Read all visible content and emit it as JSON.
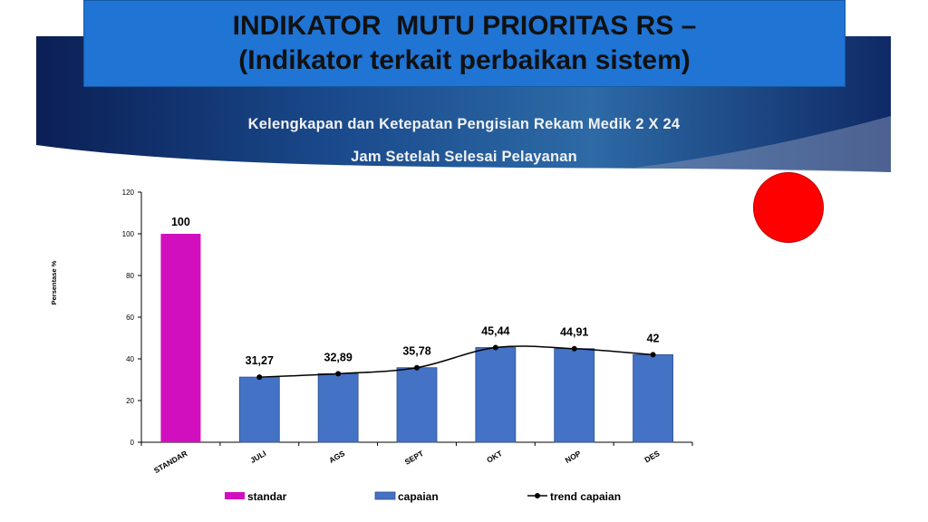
{
  "header": {
    "title_line1": "INDIKATOR  MUTU PRIORITAS RS –",
    "title_line2": "(Indikator terkait perbaikan sistem)"
  },
  "banner": {
    "subtitle_line1": "Kelengkapan dan Ketepatan Pengisian Rekam Medik 2 X 24",
    "subtitle_line2": "Jam Setelah Selesai Pelayanan"
  },
  "colors": {
    "title_bg": "#1f74d4",
    "banner_dark": "#0f2a66",
    "standar": "#d20fbe",
    "capaian": "#4472c4",
    "trend": "#000000",
    "status_dot": "#ff0000"
  },
  "status_indicator": {
    "icon": "red-circle",
    "color": "#ff0000"
  },
  "chart_data": {
    "type": "bar",
    "title": "",
    "xlabel": "",
    "ylabel": "Persentase %",
    "ylim": [
      0,
      120
    ],
    "yticks": [
      0,
      20,
      40,
      60,
      80,
      100,
      120
    ],
    "grid": false,
    "legend_position": "bottom",
    "categories": [
      "STANDAR",
      "JULI",
      "AGS",
      "SEPT",
      "OKT",
      "NOP",
      "DES"
    ],
    "series": [
      {
        "name": "standar",
        "kind": "bar",
        "color": "#d20fbe",
        "values": [
          100,
          null,
          null,
          null,
          null,
          null,
          null
        ],
        "labels": [
          "100",
          null,
          null,
          null,
          null,
          null,
          null
        ]
      },
      {
        "name": "capaian",
        "kind": "bar",
        "color": "#4472c4",
        "values": [
          null,
          31.27,
          32.89,
          35.78,
          45.44,
          44.91,
          42
        ],
        "labels": [
          null,
          "31,27",
          "32,89",
          "35,78",
          "45,44",
          "44,91",
          "42"
        ]
      },
      {
        "name": "trend capaian",
        "kind": "line",
        "color": "#000000",
        "values": [
          null,
          31.27,
          32.89,
          35.78,
          45.44,
          44.91,
          42
        ]
      }
    ]
  }
}
